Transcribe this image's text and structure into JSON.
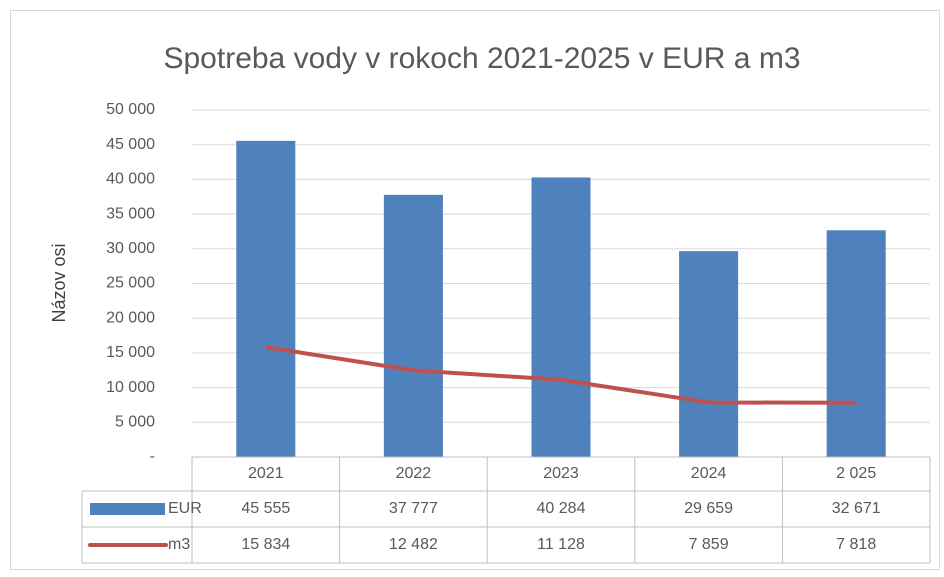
{
  "chart_data": {
    "type": "bar",
    "title": "Spotreba vody v rokoch 2021-2025 v EUR a m3",
    "y_axis_label": "Názov osi",
    "categories": [
      "2021",
      "2022",
      "2023",
      "2024",
      "2 025"
    ],
    "series": [
      {
        "name": "EUR",
        "type": "bar",
        "color": "#4f81bd",
        "values": [
          45555,
          37777,
          40284,
          29659,
          32671
        ],
        "value_labels": [
          "45 555",
          "37 777",
          "40 284",
          "29 659",
          "32 671"
        ]
      },
      {
        "name": "m3",
        "type": "line",
        "color": "#c0504d",
        "values": [
          15834,
          12482,
          11128,
          7859,
          7818
        ],
        "value_labels": [
          "15 834",
          "12 482",
          "11 128",
          "7 859",
          "7 818"
        ]
      }
    ],
    "ylim": [
      0,
      50000
    ],
    "yticks": [
      {
        "value": 0,
        "label": "-"
      },
      {
        "value": 5000,
        "label": "5 000"
      },
      {
        "value": 10000,
        "label": "10 000"
      },
      {
        "value": 15000,
        "label": "15 000"
      },
      {
        "value": 20000,
        "label": "20 000"
      },
      {
        "value": 25000,
        "label": "25 000"
      },
      {
        "value": 30000,
        "label": "30 000"
      },
      {
        "value": 35000,
        "label": "35 000"
      },
      {
        "value": 40000,
        "label": "40 000"
      },
      {
        "value": 45000,
        "label": "45 000"
      },
      {
        "value": 50000,
        "label": "50 000"
      }
    ],
    "grid": true,
    "data_table": true
  }
}
